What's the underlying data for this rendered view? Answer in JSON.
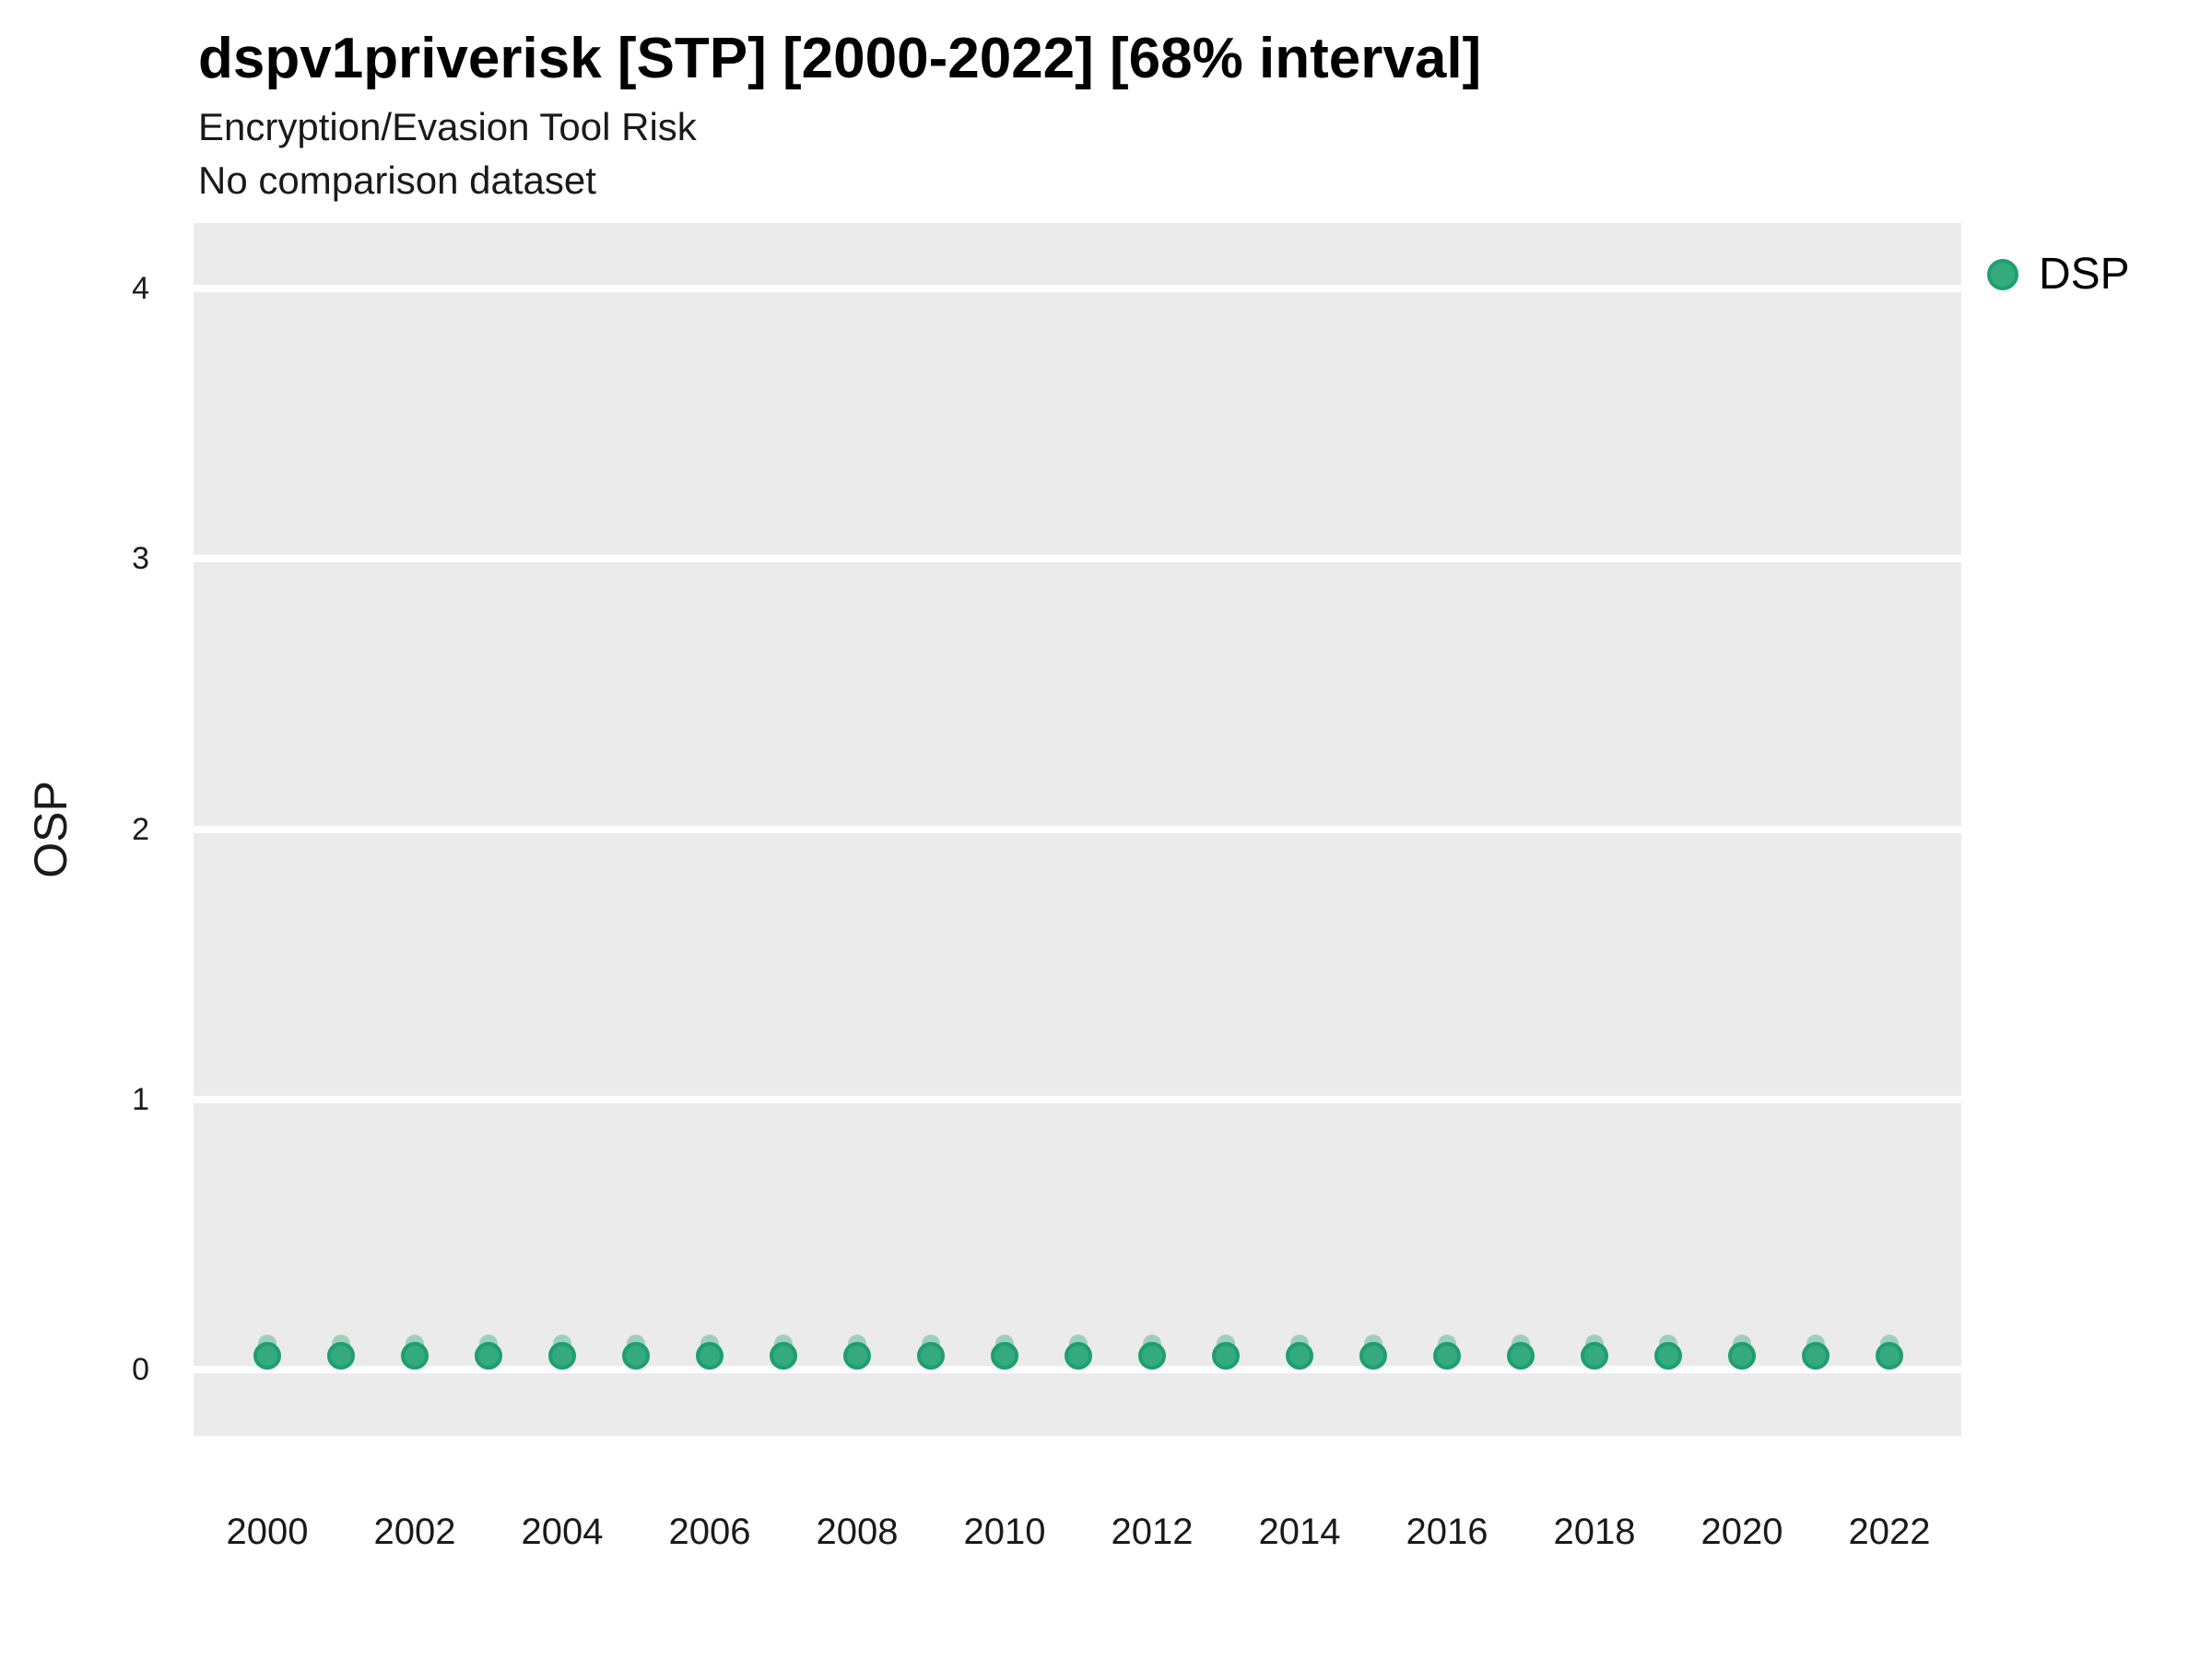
{
  "chart_data": {
    "type": "scatter",
    "title": "dspv1priverisk [STP] [2000-2022] [68% interval]",
    "subtitle": "Encryption/Evasion Tool Risk",
    "note": "No comparison dataset",
    "xlabel": "",
    "ylabel": "OSP",
    "xlim": [
      1999,
      2023
    ],
    "ylim": [
      -0.25,
      4.25
    ],
    "x_ticks": [
      2000,
      2002,
      2004,
      2006,
      2008,
      2010,
      2012,
      2014,
      2016,
      2018,
      2020,
      2022
    ],
    "y_ticks": [
      0,
      1,
      2,
      3,
      4
    ],
    "grid": "horizontal-major-only",
    "legend_position": "right-top",
    "series": [
      {
        "name": "DSP",
        "interval_label": "68% interval",
        "points": [
          {
            "x": 2000,
            "y": 0.05,
            "low": 0.0,
            "high": 0.13
          },
          {
            "x": 2001,
            "y": 0.05,
            "low": 0.0,
            "high": 0.13
          },
          {
            "x": 2002,
            "y": 0.05,
            "low": 0.0,
            "high": 0.13
          },
          {
            "x": 2003,
            "y": 0.05,
            "low": 0.0,
            "high": 0.13
          },
          {
            "x": 2004,
            "y": 0.05,
            "low": 0.0,
            "high": 0.13
          },
          {
            "x": 2005,
            "y": 0.05,
            "low": 0.0,
            "high": 0.13
          },
          {
            "x": 2006,
            "y": 0.05,
            "low": 0.0,
            "high": 0.13
          },
          {
            "x": 2007,
            "y": 0.05,
            "low": 0.0,
            "high": 0.13
          },
          {
            "x": 2008,
            "y": 0.05,
            "low": 0.0,
            "high": 0.13
          },
          {
            "x": 2009,
            "y": 0.05,
            "low": 0.0,
            "high": 0.13
          },
          {
            "x": 2010,
            "y": 0.05,
            "low": 0.0,
            "high": 0.13
          },
          {
            "x": 2011,
            "y": 0.05,
            "low": 0.0,
            "high": 0.13
          },
          {
            "x": 2012,
            "y": 0.05,
            "low": 0.0,
            "high": 0.13
          },
          {
            "x": 2013,
            "y": 0.05,
            "low": 0.0,
            "high": 0.13
          },
          {
            "x": 2014,
            "y": 0.05,
            "low": 0.0,
            "high": 0.13
          },
          {
            "x": 2015,
            "y": 0.05,
            "low": 0.0,
            "high": 0.13
          },
          {
            "x": 2016,
            "y": 0.05,
            "low": 0.0,
            "high": 0.13
          },
          {
            "x": 2017,
            "y": 0.05,
            "low": 0.0,
            "high": 0.13
          },
          {
            "x": 2018,
            "y": 0.05,
            "low": 0.0,
            "high": 0.13
          },
          {
            "x": 2019,
            "y": 0.05,
            "low": 0.0,
            "high": 0.13
          },
          {
            "x": 2020,
            "y": 0.05,
            "low": 0.0,
            "high": 0.13
          },
          {
            "x": 2021,
            "y": 0.05,
            "low": 0.0,
            "high": 0.13
          },
          {
            "x": 2022,
            "y": 0.05,
            "low": 0.0,
            "high": 0.13
          }
        ]
      }
    ]
  },
  "legend": {
    "items": [
      {
        "label": "DSP"
      }
    ]
  },
  "colors": {
    "panel_background": "#ebebeb",
    "gridline": "#ffffff",
    "point_fill": "#34aa7e",
    "point_stroke": "#1f9e6e",
    "interval_fill": "rgba(52,170,126,0.42)",
    "text": "#1a1a1a"
  }
}
